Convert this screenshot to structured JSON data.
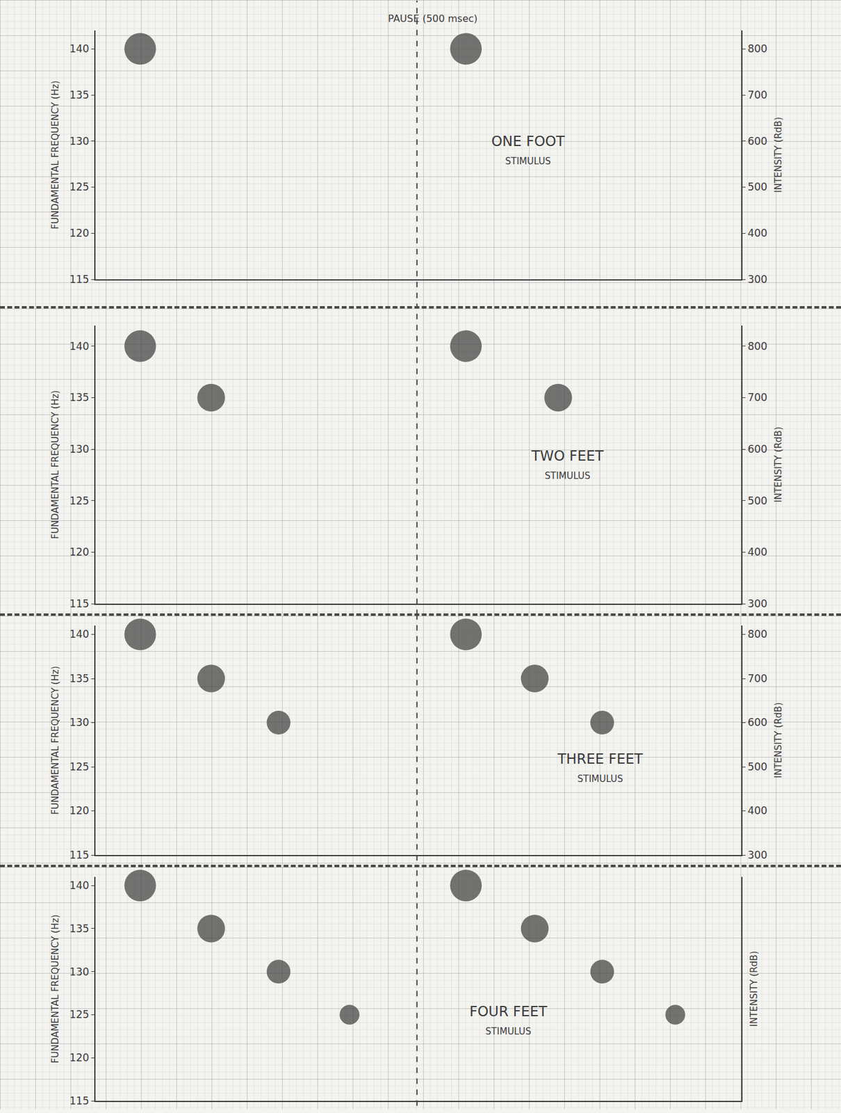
{
  "chart_data": [
    {
      "type": "scatter",
      "title": "ONE FOOT",
      "subtitle": "STIMULUS",
      "ylabel": "FUNDAMENTAL FREQUENCY (Hz)",
      "y2label": "INTENSITY (RdB)",
      "x": [
        63,
        522
      ],
      "values": [
        140,
        140
      ],
      "sizes": [
        800,
        800
      ],
      "xlim": [
        0,
        910
      ],
      "ylim": [
        115,
        142
      ],
      "yticks": [
        115,
        120,
        125,
        130,
        135,
        140
      ],
      "y2lim": [
        300,
        840
      ],
      "y2ticks": [
        300,
        400,
        500,
        600,
        700,
        800
      ],
      "pause": {
        "label": "PAUSE (500 msec)",
        "x": 453
      },
      "color": "#3a3a3a",
      "grid": true
    },
    {
      "type": "scatter",
      "title": "TWO FEET",
      "subtitle": "STIMULUS",
      "ylabel": "FUNDAMENTAL FREQUENCY (Hz)",
      "y2label": "INTENSITY (RdB)",
      "x": [
        63,
        163,
        522,
        652
      ],
      "values": [
        140,
        135,
        140,
        135
      ],
      "sizes": [
        800,
        700,
        800,
        700
      ],
      "xlim": [
        0,
        910
      ],
      "ylim": [
        115,
        142
      ],
      "yticks": [
        115,
        120,
        125,
        130,
        135,
        140
      ],
      "y2lim": [
        300,
        840
      ],
      "y2ticks": [
        300,
        400,
        500,
        600,
        700,
        800
      ],
      "pause": {
        "x": 453
      },
      "color": "#3a3a3a",
      "grid": true
    },
    {
      "type": "scatter",
      "title": "THREE FEET",
      "subtitle": "STIMULUS",
      "ylabel": "FUNDAMENTAL FREQUENCY (Hz)",
      "y2label": "INTENSITY (RdB)",
      "x": [
        63,
        163,
        258,
        522,
        619,
        714
      ],
      "values": [
        140,
        135,
        130,
        140,
        135,
        130
      ],
      "sizes": [
        800,
        700,
        600,
        800,
        700,
        600
      ],
      "xlim": [
        0,
        910
      ],
      "ylim": [
        115,
        141
      ],
      "yticks": [
        115,
        120,
        125,
        130,
        135,
        140
      ],
      "y2lim": [
        300,
        820
      ],
      "y2ticks": [
        300,
        400,
        500,
        600,
        700,
        800
      ],
      "pause": {
        "x": 453
      },
      "color": "#3a3a3a",
      "grid": true
    },
    {
      "type": "scatter",
      "title": "FOUR FEET",
      "subtitle": "STIMULUS",
      "ylabel": "FUNDAMENTAL FREQUENCY (Hz)",
      "y2label": "INTENSITY (RdB)",
      "x": [
        63,
        163,
        258,
        358,
        522,
        619,
        714,
        817
      ],
      "values": [
        140,
        135,
        130,
        125,
        140,
        135,
        130,
        125
      ],
      "sizes": [
        800,
        700,
        600,
        500,
        800,
        700,
        600,
        500
      ],
      "xlim": [
        0,
        910
      ],
      "ylim": [
        115,
        141
      ],
      "yticks": [
        115,
        120,
        125,
        130,
        135,
        140
      ],
      "y2lim": [
        300,
        820
      ],
      "pause": {
        "x": 453
      },
      "color": "#3a3a3a",
      "grid": true
    }
  ]
}
